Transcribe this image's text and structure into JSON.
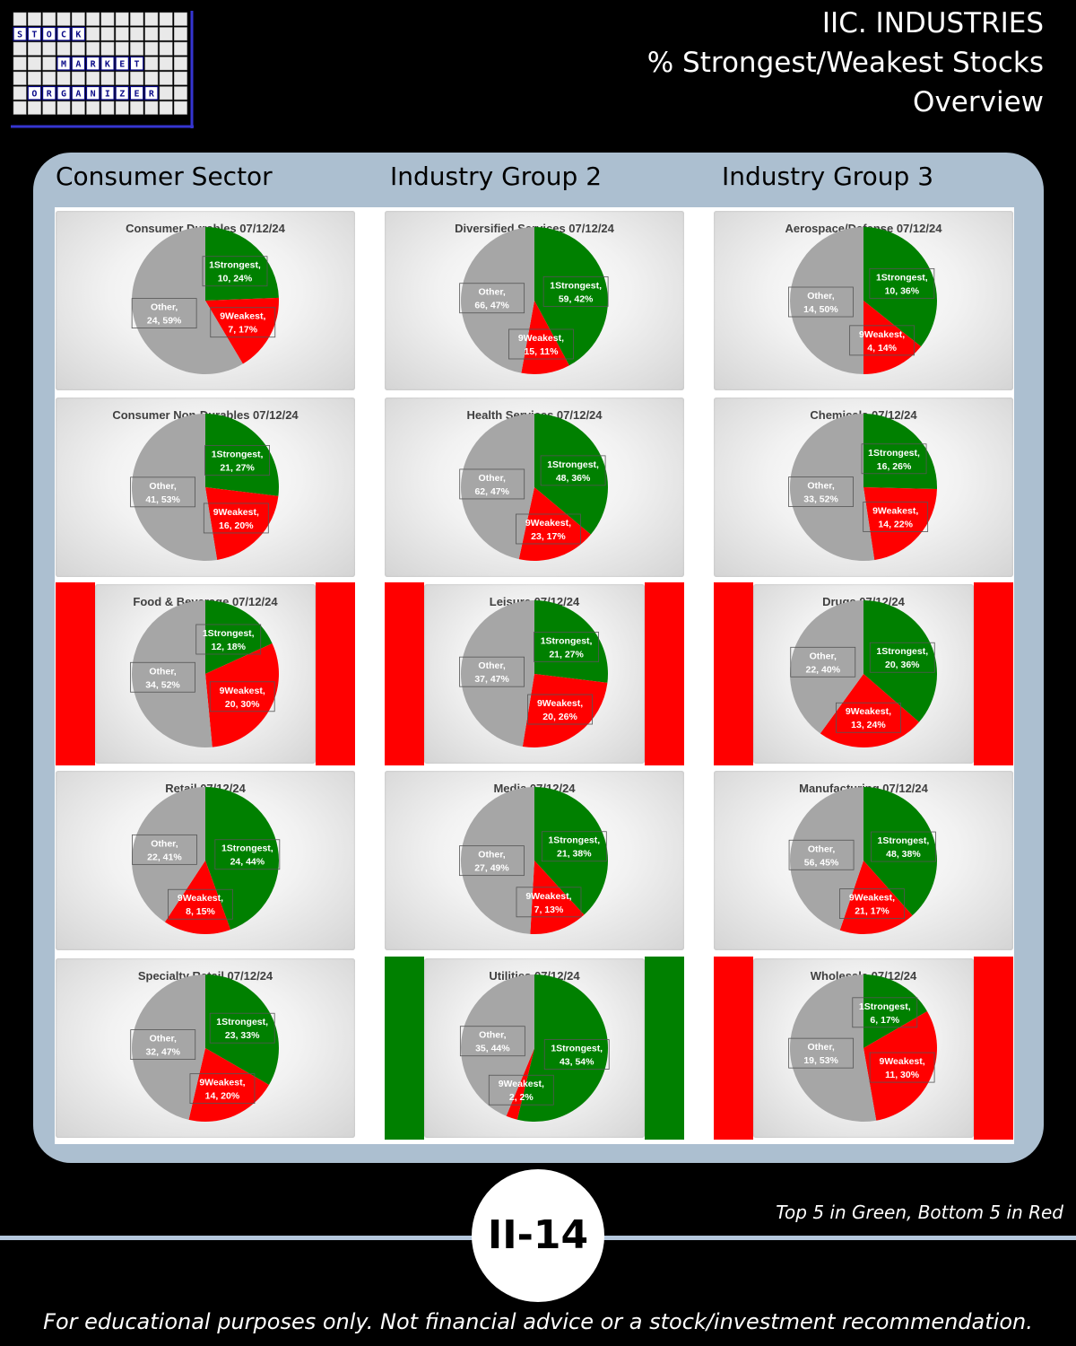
{
  "header": {
    "logo_rows": [
      "STOCK",
      "MARKET",
      "ORGANIZER"
    ],
    "title_lines": [
      "IIC. INDUSTRIES",
      "% Strongest/Weakest Stocks",
      "Overview"
    ]
  },
  "columns": [
    "Consumer Sector",
    "Industry Group 2",
    "Industry Group 3"
  ],
  "colors": {
    "strongest": "#008000",
    "weakest": "#ff0000",
    "other": "#a6a6a6",
    "panel": "#acbfd0"
  },
  "chart_data": [
    {
      "type": "pie",
      "title": "Consumer Durables 07/12/24",
      "flag": "none",
      "slices": [
        {
          "name": "1Strongest",
          "value": 10,
          "pct": 24
        },
        {
          "name": "9Weakest",
          "value": 7,
          "pct": 17
        },
        {
          "name": "Other",
          "value": 24,
          "pct": 59
        }
      ],
      "labels": [
        "1Strongest,",
        "10, 24%",
        "9Weakest,",
        "7, 17%",
        "Other,",
        "24, 59%"
      ]
    },
    {
      "type": "pie",
      "title": "Diversified Services 07/12/24",
      "flag": "none",
      "slices": [
        {
          "name": "1Strongest",
          "value": 59,
          "pct": 42
        },
        {
          "name": "9Weakest",
          "value": 15,
          "pct": 11
        },
        {
          "name": "Other",
          "value": 66,
          "pct": 47
        }
      ],
      "labels": [
        "1Strongest,",
        "59, 42%",
        "9Weakest,",
        "15, 11%",
        "Other,",
        "66, 47%"
      ]
    },
    {
      "type": "pie",
      "title": "Aerospace/Defense 07/12/24",
      "flag": "none",
      "slices": [
        {
          "name": "1Strongest",
          "value": 10,
          "pct": 36
        },
        {
          "name": "9Weakest",
          "value": 4,
          "pct": 14
        },
        {
          "name": "Other",
          "value": 14,
          "pct": 50
        }
      ],
      "labels": [
        "1Strongest,",
        "10, 36%",
        "9Weakest,",
        "4, 14%",
        "Other,",
        "14, 50%"
      ]
    },
    {
      "type": "pie",
      "title": "Consumer Non-Durables 07/12/24",
      "flag": "none",
      "slices": [
        {
          "name": "1Strongest",
          "value": 21,
          "pct": 27
        },
        {
          "name": "9Weakest",
          "value": 16,
          "pct": 20
        },
        {
          "name": "Other",
          "value": 41,
          "pct": 53
        }
      ],
      "labels": [
        "1Strongest,",
        "21, 27%",
        "9Weakest,",
        "16, 20%",
        "Other,",
        "41, 53%"
      ]
    },
    {
      "type": "pie",
      "title": "Health Services 07/12/24",
      "flag": "none",
      "slices": [
        {
          "name": "1Strongest",
          "value": 48,
          "pct": 36
        },
        {
          "name": "9Weakest",
          "value": 23,
          "pct": 17
        },
        {
          "name": "Other",
          "value": 62,
          "pct": 47
        }
      ],
      "labels": [
        "1Strongest,",
        "48, 36%",
        "9Weakest,",
        "23, 17%",
        "Other,",
        "62, 47%"
      ]
    },
    {
      "type": "pie",
      "title": "Chemicals 07/12/24",
      "flag": "none",
      "slices": [
        {
          "name": "1Strongest",
          "value": 16,
          "pct": 26
        },
        {
          "name": "9Weakest",
          "value": 14,
          "pct": 22
        },
        {
          "name": "Other",
          "value": 33,
          "pct": 52
        }
      ],
      "labels": [
        "1Strongest,",
        "16, 26%",
        "9Weakest,",
        "14, 22%",
        "Other,",
        "33, 52%"
      ]
    },
    {
      "type": "pie",
      "title": "Food & Beverage 07/12/24",
      "flag": "red",
      "slices": [
        {
          "name": "1Strongest",
          "value": 12,
          "pct": 18
        },
        {
          "name": "9Weakest",
          "value": 20,
          "pct": 30
        },
        {
          "name": "Other",
          "value": 34,
          "pct": 52
        }
      ],
      "labels": [
        "1Strongest,",
        "12, 18%",
        "9Weakest,",
        "20, 30%",
        "Other,",
        "34, 52%"
      ]
    },
    {
      "type": "pie",
      "title": "Leisure 07/12/24",
      "flag": "red",
      "slices": [
        {
          "name": "1Strongest",
          "value": 21,
          "pct": 27
        },
        {
          "name": "9Weakest",
          "value": 20,
          "pct": 26
        },
        {
          "name": "Other",
          "value": 37,
          "pct": 47
        }
      ],
      "labels": [
        "1Strongest,",
        "21, 27%",
        "9Weakest,",
        "20, 26%",
        "Other,",
        "37, 47%"
      ]
    },
    {
      "type": "pie",
      "title": "Drugs 07/12/24",
      "flag": "red",
      "slices": [
        {
          "name": "1Strongest",
          "value": 20,
          "pct": 36
        },
        {
          "name": "9Weakest",
          "value": 13,
          "pct": 24
        },
        {
          "name": "Other",
          "value": 22,
          "pct": 40
        }
      ],
      "labels": [
        "1Strongest,",
        "20, 36%",
        "9Weakest,",
        "13, 24%",
        "Other,",
        "22, 40%"
      ]
    },
    {
      "type": "pie",
      "title": "Retail 07/12/24",
      "flag": "none",
      "slices": [
        {
          "name": "1Strongest",
          "value": 24,
          "pct": 44
        },
        {
          "name": "9Weakest",
          "value": 8,
          "pct": 15
        },
        {
          "name": "Other",
          "value": 22,
          "pct": 41
        }
      ],
      "labels": [
        "1Strongest,",
        "24, 44%",
        "9Weakest,",
        "8, 15%",
        "Other,",
        "22, 41%"
      ]
    },
    {
      "type": "pie",
      "title": "Media 07/12/24",
      "flag": "none",
      "slices": [
        {
          "name": "1Strongest",
          "value": 21,
          "pct": 38
        },
        {
          "name": "9Weakest",
          "value": 7,
          "pct": 13
        },
        {
          "name": "Other",
          "value": 27,
          "pct": 49
        }
      ],
      "labels": [
        "1Strongest,",
        "21, 38%",
        "9Weakest,",
        "7, 13%",
        "Other,",
        "27, 49%"
      ]
    },
    {
      "type": "pie",
      "title": "Manufacturing 07/12/24",
      "flag": "none",
      "slices": [
        {
          "name": "1Strongest",
          "value": 48,
          "pct": 38
        },
        {
          "name": "9Weakest",
          "value": 21,
          "pct": 17
        },
        {
          "name": "Other",
          "value": 56,
          "pct": 45
        }
      ],
      "labels": [
        "1Strongest,",
        "48, 38%",
        "9Weakest,",
        "21, 17%",
        "Other,",
        "56, 45%"
      ]
    },
    {
      "type": "pie",
      "title": "Specialty Retail 07/12/24",
      "flag": "none",
      "slices": [
        {
          "name": "1Strongest",
          "value": 23,
          "pct": 33
        },
        {
          "name": "9Weakest",
          "value": 14,
          "pct": 20
        },
        {
          "name": "Other",
          "value": 32,
          "pct": 47
        }
      ],
      "labels": [
        "1Strongest,",
        "23, 33%",
        "9Weakest,",
        "14, 20%",
        "Other,",
        "32, 47%"
      ]
    },
    {
      "type": "pie",
      "title": "Utilities 07/12/24",
      "flag": "green",
      "slices": [
        {
          "name": "1Strongest",
          "value": 43,
          "pct": 54
        },
        {
          "name": "9Weakest",
          "value": 2,
          "pct": 2
        },
        {
          "name": "Other",
          "value": 35,
          "pct": 44
        }
      ],
      "labels": [
        "1Strongest,",
        "43, 54%",
        "9Weakest,",
        "2, 2%",
        "Other,",
        "35, 44%"
      ]
    },
    {
      "type": "pie",
      "title": "Wholesale 07/12/24",
      "flag": "red",
      "slices": [
        {
          "name": "1Strongest",
          "value": 6,
          "pct": 17
        },
        {
          "name": "9Weakest",
          "value": 11,
          "pct": 30
        },
        {
          "name": "Other",
          "value": 19,
          "pct": 53
        }
      ],
      "labels": [
        "1Strongest,",
        "6, 17%",
        "9Weakest,",
        "11, 30%",
        "Other,",
        "19, 53%"
      ]
    }
  ],
  "footer": {
    "page_number": "II-14",
    "note": "Top 5 in Green, Bottom 5 in Red",
    "disclaimer": "For educational purposes only. Not financial advice or a stock/investment recommendation."
  }
}
